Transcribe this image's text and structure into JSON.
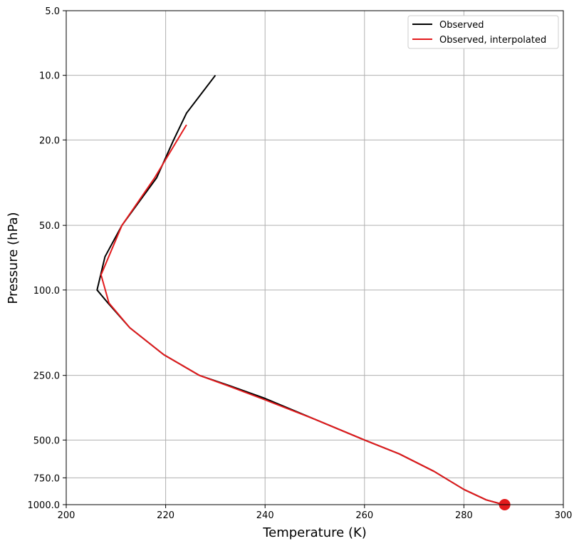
{
  "chart_data": {
    "type": "line",
    "xlabel": "Temperature (K)",
    "ylabel": "Pressure (hPa)",
    "xlim": [
      200,
      300
    ],
    "ylim": [
      1000,
      5
    ],
    "y_scale": "log",
    "xticks": [
      200,
      220,
      240,
      260,
      280,
      300
    ],
    "xtick_labels": [
      "200",
      "220",
      "240",
      "260",
      "280",
      "300"
    ],
    "yticks": [
      5,
      10,
      20,
      50,
      100,
      250,
      500,
      750,
      1000
    ],
    "ytick_labels": [
      "5.0",
      "10.0",
      "20.0",
      "50.0",
      "100.0",
      "250.0",
      "500.0",
      "750.0",
      "1000.0"
    ],
    "grid": true,
    "legend_position": "top-right",
    "series": [
      {
        "name": "Observed",
        "color": "#000000",
        "points": [
          {
            "x": 288.0,
            "y": 1000
          },
          {
            "x": 284.5,
            "y": 950
          },
          {
            "x": 280.0,
            "y": 850
          },
          {
            "x": 274.0,
            "y": 700
          },
          {
            "x": 267.0,
            "y": 580
          },
          {
            "x": 260.0,
            "y": 500
          },
          {
            "x": 250.0,
            "y": 400
          },
          {
            "x": 240.0,
            "y": 320
          },
          {
            "x": 233.0,
            "y": 280
          },
          {
            "x": 226.8,
            "y": 250
          },
          {
            "x": 219.6,
            "y": 200
          },
          {
            "x": 212.8,
            "y": 150
          },
          {
            "x": 208.4,
            "y": 115
          },
          {
            "x": 206.2,
            "y": 100
          },
          {
            "x": 207.8,
            "y": 70
          },
          {
            "x": 211.2,
            "y": 50
          },
          {
            "x": 218.2,
            "y": 30
          },
          {
            "x": 221.6,
            "y": 20
          },
          {
            "x": 224.2,
            "y": 15
          },
          {
            "x": 230.0,
            "y": 10
          }
        ]
      },
      {
        "name": "Observed, interpolated",
        "color": "#e31a1c",
        "points": [
          {
            "x": 288.0,
            "y": 1000
          },
          {
            "x": 284.5,
            "y": 950
          },
          {
            "x": 280.0,
            "y": 850
          },
          {
            "x": 274.0,
            "y": 700
          },
          {
            "x": 267.0,
            "y": 580
          },
          {
            "x": 260.0,
            "y": 500
          },
          {
            "x": 250.0,
            "y": 400
          },
          {
            "x": 240.0,
            "y": 325
          },
          {
            "x": 233.0,
            "y": 282
          },
          {
            "x": 226.8,
            "y": 250
          },
          {
            "x": 219.6,
            "y": 200
          },
          {
            "x": 212.8,
            "y": 150
          },
          {
            "x": 208.6,
            "y": 115
          },
          {
            "x": 207.0,
            "y": 85
          },
          {
            "x": 211.2,
            "y": 50
          },
          {
            "x": 217.8,
            "y": 30
          },
          {
            "x": 224.2,
            "y": 17
          }
        ]
      }
    ],
    "markers": [
      {
        "x": 288.2,
        "y": 1000,
        "color": "#e31a1c"
      }
    ]
  }
}
